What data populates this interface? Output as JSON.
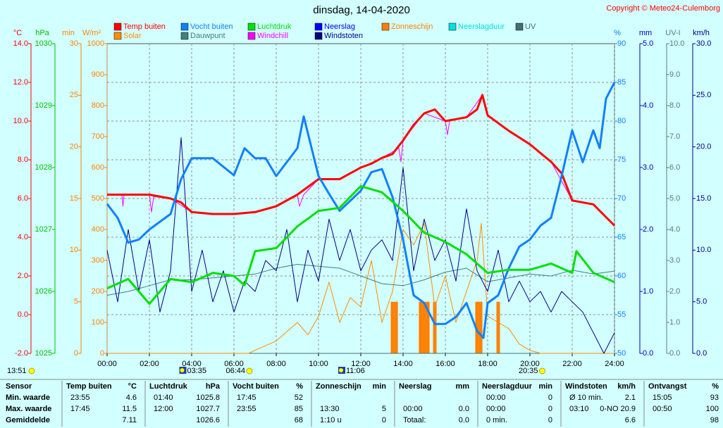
{
  "chart_data": {
    "type": "line",
    "title": "dinsdag, 14-04-2020",
    "copyright": "Copyright © Meteo24-Culemborg",
    "xlim": [
      0,
      24
    ],
    "xticks": [
      {
        "value": 0,
        "label": "00:00"
      },
      {
        "value": 2,
        "label": "02:00"
      },
      {
        "value": 4,
        "label": "04:00"
      },
      {
        "value": 6,
        "label": "06:00"
      },
      {
        "value": 8,
        "label": "08:00"
      },
      {
        "value": 10,
        "label": "10:00"
      },
      {
        "value": 12,
        "label": "12:00"
      },
      {
        "value": 14,
        "label": "14:00"
      },
      {
        "value": 16,
        "label": "16:00"
      },
      {
        "value": 18,
        "label": "18:00"
      },
      {
        "value": 20,
        "label": "20:00"
      },
      {
        "value": 22,
        "label": "22:00"
      },
      {
        "value": 24,
        "label": "24:00"
      }
    ],
    "grid": true,
    "axes": [
      {
        "unit": "°C",
        "side": "left",
        "color": "#ff0000",
        "lim": [
          -2,
          14
        ],
        "ticks": [
          {
            "value": -2,
            "label": "-2.0"
          },
          {
            "value": 0,
            "label": "0.0"
          },
          {
            "value": 2,
            "label": "2.0"
          },
          {
            "value": 4,
            "label": "4.0"
          },
          {
            "value": 6,
            "label": "6.0"
          },
          {
            "value": 8,
            "label": "8.0"
          },
          {
            "value": 10,
            "label": "10.0"
          },
          {
            "value": 12,
            "label": "12.0"
          },
          {
            "value": 14,
            "label": "14.0"
          }
        ]
      },
      {
        "unit": "hPa",
        "side": "left",
        "color": "#00c000",
        "lim": [
          1025,
          1030
        ],
        "ticks": [
          1025,
          1026,
          1027,
          1028,
          1029,
          1030
        ]
      },
      {
        "unit": "min",
        "side": "left",
        "color": "#ff8000",
        "lim": [
          0,
          30
        ],
        "ticks": [
          0,
          5,
          10,
          15,
          20,
          25,
          30
        ]
      },
      {
        "unit": "W/m²",
        "side": "left",
        "color": "#ff8000",
        "lim": [
          0,
          1000
        ],
        "ticks": [
          0,
          100,
          200,
          300,
          400,
          500,
          600,
          700,
          800,
          900,
          1000
        ]
      },
      {
        "unit": "%",
        "side": "right",
        "color": "#1080ff",
        "lim": [
          50,
          90
        ],
        "ticks": [
          50,
          55,
          60,
          65,
          70,
          75,
          80,
          85,
          90
        ]
      },
      {
        "unit": "mm",
        "side": "right",
        "color": "#0000c0",
        "lim": [
          0,
          5
        ],
        "ticks": [
          {
            "value": 0,
            "label": "0.0"
          },
          {
            "value": 1,
            "label": "1.0"
          },
          {
            "value": 2,
            "label": "2.0"
          },
          {
            "value": 3,
            "label": "3.0"
          },
          {
            "value": 4,
            "label": "4.0"
          },
          {
            "value": 5,
            "label": "5.0"
          }
        ]
      },
      {
        "unit": "UV-I",
        "side": "right",
        "color": "#607878",
        "lim": [
          0,
          10
        ],
        "ticks": [
          {
            "value": 0,
            "label": "0.0"
          },
          {
            "value": 1,
            "label": "1.0"
          },
          {
            "value": 2,
            "label": "2.0"
          },
          {
            "value": 3,
            "label": "3.0"
          },
          {
            "value": 4,
            "label": "4.0"
          },
          {
            "value": 5,
            "label": "5.0"
          },
          {
            "value": 6,
            "label": "6.0"
          },
          {
            "value": 7,
            "label": "7.0"
          },
          {
            "value": 8,
            "label": "8.0"
          },
          {
            "value": 9,
            "label": "9.0"
          },
          {
            "value": 10,
            "label": "10.0"
          }
        ]
      },
      {
        "unit": "km/h",
        "side": "right",
        "color": "#000080",
        "lim": [
          0,
          30
        ],
        "ticks": [
          {
            "value": 0,
            "label": "0.0"
          },
          {
            "value": 5,
            "label": "5.0"
          },
          {
            "value": 10,
            "label": "10.0"
          },
          {
            "value": 15,
            "label": "15.0"
          },
          {
            "value": 20,
            "label": "20.0"
          },
          {
            "value": 25,
            "label": "25.0"
          },
          {
            "value": 30,
            "label": "30.0"
          }
        ]
      }
    ],
    "series": [
      {
        "name": "Temp buiten",
        "color": "#ff0000",
        "axis": 0,
        "kind": "line",
        "width": 3,
        "x": [
          0,
          1,
          2,
          3,
          3.5,
          4,
          5,
          6,
          7,
          8,
          9,
          9.5,
          10,
          11,
          12,
          12.5,
          13,
          13.5,
          14,
          14.5,
          15,
          15.5,
          16,
          16.5,
          17,
          17.5,
          17.75,
          18,
          19,
          20,
          21,
          21.5,
          22,
          23,
          24
        ],
        "values": [
          6.2,
          6.2,
          6.2,
          6.0,
          5.8,
          5.3,
          5.2,
          5.2,
          5.3,
          5.6,
          6.2,
          6.6,
          7.0,
          7.0,
          7.6,
          7.8,
          8.1,
          8.3,
          9.0,
          9.8,
          10.4,
          10.6,
          10.0,
          10.1,
          10.2,
          10.6,
          11.35,
          10.3,
          9.5,
          8.8,
          7.9,
          7.3,
          5.9,
          5.7,
          4.6
        ]
      },
      {
        "name": "Vocht buiten",
        "color": "#1080ff",
        "axis": 4,
        "kind": "line",
        "width": 3,
        "x": [
          0,
          0.5,
          1,
          1.5,
          2,
          3,
          3.5,
          4,
          5,
          6,
          6.5,
          7,
          7.5,
          8,
          9,
          9.3,
          10,
          10.5,
          11,
          12,
          12.5,
          13,
          13.5,
          14,
          14.5,
          15,
          15.5,
          16,
          16.5,
          17,
          17.5,
          17.8,
          18,
          18.5,
          19,
          19.5,
          20,
          20.5,
          21,
          21.5,
          22,
          22.5,
          23,
          23.3,
          23.6,
          24
        ],
        "values": [
          69.3,
          67.5,
          64.3,
          64.7,
          66,
          68,
          72.5,
          75.2,
          75.2,
          73,
          76.5,
          75.2,
          75.2,
          72.9,
          76.5,
          80.6,
          72.9,
          70.6,
          68.4,
          71,
          73.4,
          73.8,
          70.2,
          64.7,
          57.5,
          56.5,
          53.8,
          53.8,
          54.7,
          56.5,
          52.9,
          52,
          56.5,
          57.5,
          61,
          63.8,
          64.7,
          66.5,
          67.5,
          72.9,
          78.8,
          74.7,
          78.8,
          76.5,
          82.9,
          85
        ]
      },
      {
        "name": "Luchtdruk",
        "color": "#00e000",
        "axis": 1,
        "kind": "line",
        "width": 3,
        "x": [
          0,
          1,
          2,
          3,
          4,
          5,
          6,
          6.5,
          7,
          8,
          9,
          10,
          11,
          12,
          13,
          14,
          15,
          16,
          17,
          18,
          19,
          20,
          21,
          22,
          22.2,
          23,
          24
        ],
        "values": [
          1026.05,
          1026.2,
          1025.8,
          1026.2,
          1026.15,
          1026.3,
          1026.25,
          1026.1,
          1026.65,
          1026.7,
          1027.05,
          1027.3,
          1027.35,
          1027.7,
          1027.6,
          1027.3,
          1026.95,
          1026.8,
          1026.6,
          1026.3,
          1026.35,
          1026.35,
          1026.45,
          1026.3,
          1026.65,
          1026.3,
          1026.15
        ]
      },
      {
        "name": "Neerslag",
        "color": "#0000ff",
        "axis": 5,
        "kind": "line",
        "width": 1,
        "x": [
          0,
          24
        ],
        "values": [
          0,
          0
        ]
      },
      {
        "name": "Zonneschijn",
        "color": "#ff8000",
        "axis": 2,
        "kind": "bar",
        "width": 1,
        "x": [
          13.5,
          13.67,
          14.83,
          15.0,
          15.17,
          15.5,
          17.5,
          17.67,
          18.5
        ],
        "values": [
          5,
          5,
          5,
          5,
          5,
          5,
          5,
          5,
          5
        ]
      },
      {
        "name": "Neerslagduur",
        "color": "#00e0e0",
        "axis": 2,
        "kind": "line",
        "width": 1,
        "x": [
          0,
          24
        ],
        "values": [
          0,
          0
        ]
      },
      {
        "name": "UV",
        "color": "#407070",
        "axis": 6,
        "kind": "line",
        "width": 1,
        "x": [
          0,
          24
        ],
        "values": [
          0,
          0
        ]
      },
      {
        "name": "Solar",
        "color": "#ff8c00",
        "axis": 3,
        "kind": "line",
        "width": 1,
        "x": [
          0,
          6.7,
          7,
          8,
          9,
          9.5,
          10,
          10.5,
          11,
          11.5,
          12,
          12.5,
          13,
          13.5,
          14,
          14.5,
          15,
          15.5,
          16,
          16.5,
          17,
          17.5,
          17.7,
          18,
          18.5,
          19,
          19.5,
          20,
          20.5,
          24
        ],
        "values": [
          0,
          0,
          10,
          40,
          100,
          60,
          120,
          230,
          100,
          180,
          150,
          300,
          100,
          200,
          400,
          350,
          420,
          150,
          250,
          100,
          200,
          300,
          420,
          120,
          100,
          80,
          30,
          10,
          0,
          0
        ]
      },
      {
        "name": "Dauwpunt",
        "color": "#408080",
        "axis": 0,
        "kind": "line",
        "width": 1,
        "x": [
          0,
          1,
          2,
          3,
          4,
          5,
          6,
          7,
          8,
          9,
          10,
          11,
          12,
          13,
          14,
          15,
          16,
          17,
          18,
          19,
          20,
          21,
          22,
          23,
          24
        ],
        "values": [
          1.0,
          1.2,
          1.5,
          1.8,
          1.8,
          1.9,
          2.0,
          2.1,
          2.4,
          2.6,
          2.5,
          2.4,
          2.0,
          1.6,
          1.5,
          1.8,
          2.2,
          2.4,
          1.7,
          1.9,
          2.1,
          2.0,
          2.3,
          2.1,
          2.25
        ]
      },
      {
        "name": "Windchill",
        "color": "#ff00ff",
        "axis": 0,
        "kind": "line",
        "width": 1,
        "x": [
          0,
          0.7,
          0.75,
          0.8,
          2,
          2.1,
          2.2,
          3,
          4,
          5,
          6,
          7,
          8,
          9,
          9.1,
          9.3,
          10,
          11,
          12,
          13,
          13.8,
          13.9,
          14,
          15,
          16,
          16.1,
          16.2,
          17,
          17.75,
          18,
          19,
          20,
          21,
          22,
          23,
          24
        ],
        "values": [
          6.2,
          6.2,
          5.6,
          6.2,
          6.2,
          5.3,
          6.1,
          6.0,
          5.3,
          5.2,
          5.2,
          5.3,
          5.6,
          6.2,
          5.6,
          6.2,
          7.0,
          7.0,
          7.6,
          8.1,
          8.6,
          7.9,
          9.0,
          10.4,
          10.0,
          9.3,
          10.0,
          10.2,
          11.35,
          10.3,
          9.5,
          8.8,
          7.9,
          5.9,
          5.7,
          4.6
        ]
      },
      {
        "name": "Windstoten",
        "color": "#000080",
        "axis": 7,
        "kind": "line",
        "width": 1,
        "x": [
          0,
          0.5,
          1,
          1.5,
          2,
          2.5,
          3,
          3.5,
          4,
          4.5,
          5,
          5.5,
          6,
          6.5,
          7,
          7.5,
          8,
          8.5,
          9,
          9.5,
          10,
          10.5,
          11,
          11.5,
          12,
          12.5,
          13,
          13.5,
          14,
          14.5,
          15,
          15.5,
          16,
          16.5,
          17,
          17.5,
          18,
          18.5,
          19,
          19.5,
          20,
          20.5,
          21,
          21.5,
          22,
          22.5,
          23,
          23.5,
          24
        ],
        "values": [
          10,
          5,
          12,
          6,
          11,
          4,
          8,
          20.9,
          6,
          10,
          5,
          8,
          4,
          7,
          6,
          9,
          8,
          12,
          5,
          10,
          7,
          13,
          9,
          12,
          8,
          10,
          11,
          9,
          18,
          8,
          13,
          9,
          11,
          7,
          14,
          8,
          6,
          10,
          5,
          7,
          5,
          6,
          4,
          6,
          5,
          4,
          2,
          0,
          2
        ]
      }
    ],
    "current_time": "13:51",
    "events": [
      {
        "time": "03:35",
        "kind": "moon"
      },
      {
        "time": "06:44",
        "kind": "sun"
      },
      {
        "time": "11:06",
        "kind": "moon"
      },
      {
        "time": "20:35",
        "kind": "sun"
      }
    ]
  },
  "table": {
    "header": [
      "Sensor",
      [
        "Temp buiten",
        "°C"
      ],
      [
        "Luchtdruk",
        "hPa"
      ],
      [
        "Vocht buiten",
        "%"
      ],
      [
        "Zonneschijn",
        "min"
      ],
      [
        "Neerslag",
        "mm"
      ],
      [
        "Neerslagduur",
        "min"
      ],
      [
        "Windstoten",
        "km/h"
      ],
      [
        "Ontvangst",
        "%"
      ]
    ],
    "rows": [
      {
        "label": "Min. waarde",
        "cells": [
          [
            "23:55",
            "4.6"
          ],
          [
            "01:40",
            "1025.8"
          ],
          [
            "17:45",
            "52"
          ],
          [
            null,
            null
          ],
          [
            null,
            null
          ],
          [
            "00:00",
            "0"
          ],
          [
            "Ø 10 min.",
            "2.1"
          ],
          [
            "15:05",
            "93"
          ]
        ]
      },
      {
        "label": "Max. waarde",
        "cells": [
          [
            "17:45",
            "11.5"
          ],
          [
            "12:00",
            "1027.7"
          ],
          [
            "23:55",
            "85"
          ],
          [
            "13:30",
            "5"
          ],
          [
            "00:00",
            "0.0"
          ],
          [
            "00:00",
            "0"
          ],
          [
            "03:10",
            "0-NO 20.9"
          ],
          [
            "00:50",
            "100"
          ]
        ]
      },
      {
        "label": "Gemiddelde",
        "cells": [
          [
            null,
            "7.11"
          ],
          [
            null,
            "1026.6"
          ],
          [
            null,
            "68"
          ],
          [
            "1:10 u",
            "0"
          ],
          [
            "Totaal:",
            "0.0"
          ],
          [
            "0 min.",
            "0"
          ],
          [
            null,
            "6.6"
          ],
          [
            null,
            "98"
          ]
        ]
      }
    ]
  }
}
